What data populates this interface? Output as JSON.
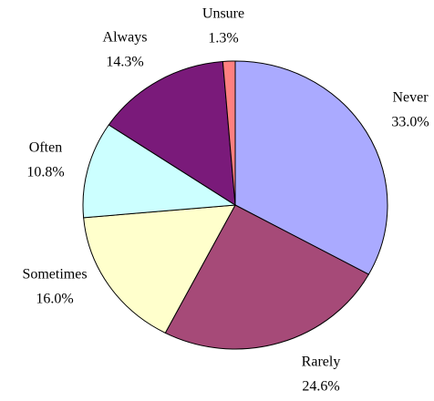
{
  "chart_data": {
    "type": "pie",
    "categories": [
      "Never",
      "Rarely",
      "Sometimes",
      "Often",
      "Always",
      "Unsure"
    ],
    "values": [
      33.0,
      24.6,
      16.0,
      10.8,
      14.3,
      1.3
    ],
    "value_labels": [
      "33.0%",
      "24.6%",
      "16.0%",
      "10.8%",
      "14.3%",
      "1.3%"
    ],
    "colors": [
      "#aaaaff",
      "#a64a78",
      "#ffffcc",
      "#ccffff",
      "#7a1a7a",
      "#ff8080"
    ]
  }
}
